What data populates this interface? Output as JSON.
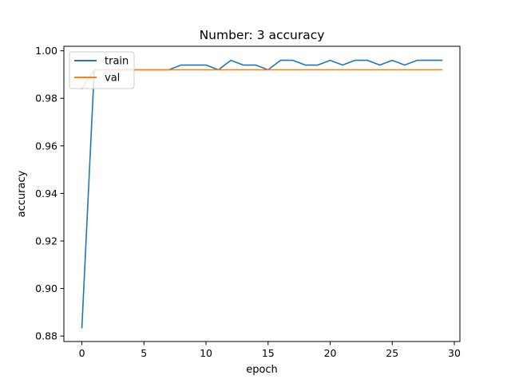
{
  "chart_data": {
    "type": "line",
    "title": "Number: 3 accuracy",
    "xlabel": "epoch",
    "ylabel": "accuracy",
    "xlim": [
      -1.45,
      30.45
    ],
    "ylim": [
      0.8777,
      1.0019
    ],
    "xticks": [
      0,
      5,
      10,
      15,
      20,
      25,
      30
    ],
    "yticks": [
      0.88,
      0.9,
      0.92,
      0.94,
      0.96,
      0.98,
      1.0
    ],
    "ytick_labels": [
      "0.88",
      "0.90",
      "0.92",
      "0.94",
      "0.96",
      "0.98",
      "1.00"
    ],
    "grid": false,
    "legend_position": "upper-left",
    "x": [
      0,
      1,
      2,
      3,
      4,
      5,
      6,
      7,
      8,
      9,
      10,
      11,
      12,
      13,
      14,
      15,
      16,
      17,
      18,
      19,
      20,
      21,
      22,
      23,
      24,
      25,
      26,
      27,
      28,
      29
    ],
    "series": [
      {
        "name": "train",
        "color": "#1f77b4",
        "values": [
          0.8835,
          0.992,
          0.992,
          0.992,
          0.992,
          0.992,
          0.992,
          0.992,
          0.994,
          0.994,
          0.994,
          0.992,
          0.996,
          0.994,
          0.994,
          0.992,
          0.996,
          0.996,
          0.994,
          0.994,
          0.996,
          0.994,
          0.996,
          0.996,
          0.994,
          0.996,
          0.994,
          0.996,
          0.996,
          0.996
        ]
      },
      {
        "name": "val",
        "color": "#ff7f0e",
        "values": [
          0.984,
          0.992,
          0.992,
          0.992,
          0.992,
          0.992,
          0.992,
          0.992,
          0.992,
          0.992,
          0.992,
          0.992,
          0.992,
          0.992,
          0.992,
          0.992,
          0.992,
          0.992,
          0.992,
          0.992,
          0.992,
          0.992,
          0.992,
          0.992,
          0.992,
          0.992,
          0.992,
          0.992,
          0.992,
          0.992
        ]
      }
    ]
  }
}
